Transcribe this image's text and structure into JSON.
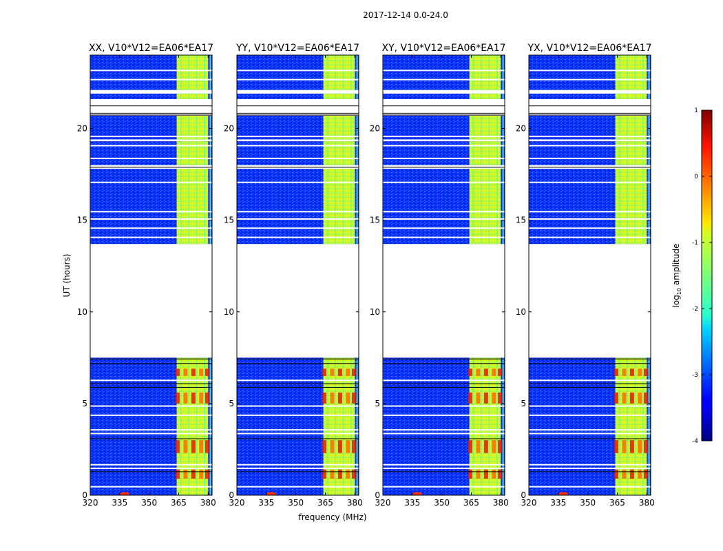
{
  "figure": {
    "suptitle": "2017-12-14 0.0-24.0"
  },
  "chart_data": {
    "type": "heatmap",
    "description_note": "Dynamic spectra (waterfall) of log10 amplitude vs frequency and UT for four correlation products",
    "xlabel": "frequency (MHz)",
    "ylabel": "UT (hours)",
    "xlim": [
      320,
      382
    ],
    "ylim": [
      0,
      24
    ],
    "x_ticks": [
      320,
      335,
      350,
      365,
      380
    ],
    "y_ticks": [
      0,
      5,
      10,
      15,
      20
    ],
    "colorbar": {
      "label_main": "log",
      "label_sub": "10",
      "label_rest": " amplitude",
      "range": [
        -4,
        1
      ],
      "ticks": [
        1,
        0,
        -1,
        -2,
        -3,
        -4
      ],
      "colormap": "jet"
    },
    "panels": [
      {
        "title": "XX, V10*V12=EA06*EA17",
        "product": "XX",
        "cross": false
      },
      {
        "title": "YY, V10*V12=EA06*EA17",
        "product": "YY",
        "cross": false
      },
      {
        "title": "XY, V10*V12=EA06*EA17",
        "product": "XY",
        "cross": true
      },
      {
        "title": "YX, V10*V12=EA06*EA17",
        "product": "YX",
        "cross": true
      }
    ],
    "data_segments_ut_hours": [
      [
        0.0,
        7.5
      ],
      [
        13.7,
        17.8
      ],
      [
        18.0,
        19.3
      ],
      [
        19.4,
        20.7
      ],
      [
        21.6,
        21.9
      ],
      [
        22.1,
        24.0
      ]
    ],
    "rfi_band_mhz": [
      364,
      379
    ],
    "rfi_channels_mhz": [
      364.5,
      368.5,
      372.5,
      376.5,
      379.5
    ]
  }
}
